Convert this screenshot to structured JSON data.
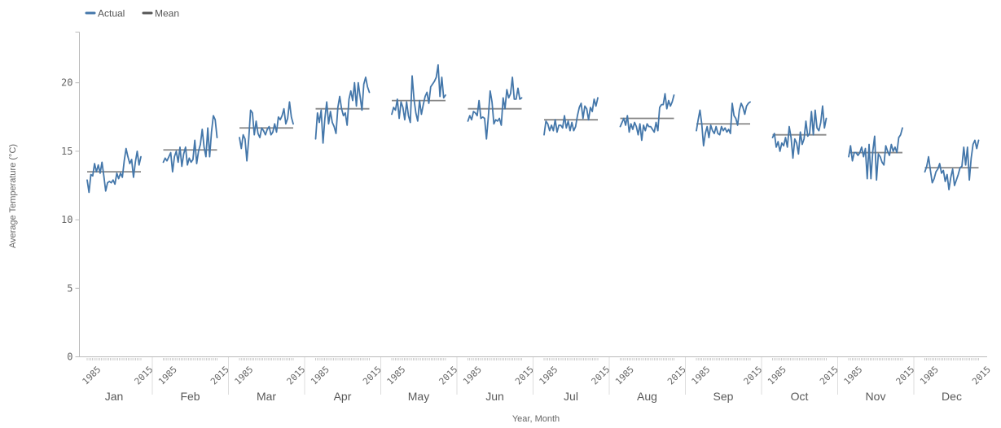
{
  "chart_data": {
    "type": "line",
    "title": "",
    "xlabel": "Year, Month",
    "ylabel": "Average Temperature (°C)",
    "ylim": [
      0,
      23.7
    ],
    "yticks": [
      0,
      5,
      10,
      15,
      20
    ],
    "grid": false,
    "legend_position": "top-left",
    "legend": [
      {
        "name": "Actual",
        "color": "#4477aa"
      },
      {
        "name": "Mean",
        "color": "#555555"
      }
    ],
    "year_start": 1985,
    "year_end": 2015,
    "year_tick_labels": [
      "1985",
      "2015"
    ],
    "categories": [
      "Jan",
      "Feb",
      "Mar",
      "Apr",
      "May",
      "Jun",
      "Jul",
      "Aug",
      "Sep",
      "Oct",
      "Nov",
      "Dec"
    ],
    "series": [
      {
        "name": "Actual",
        "color": "#4477aa",
        "by_month": [
          {
            "month": "Jan",
            "values": [
              12.9,
              12.0,
              13.3,
              13.2,
              14.1,
              13.5,
              14.0,
              13.4,
              14.2,
              13.2,
              12.1,
              12.7,
              12.8,
              12.7,
              12.9,
              12.6,
              13.4,
              13.0,
              13.4,
              13.1,
              14.3,
              15.2,
              14.6,
              14.1,
              14.4,
              13.1,
              14.2,
              15.0,
              14.0,
              14.6
            ]
          },
          {
            "month": "Feb",
            "values": [
              14.2,
              14.5,
              14.3,
              14.6,
              14.9,
              13.5,
              14.6,
              15.0,
              14.2,
              15.3,
              13.9,
              14.8,
              15.3,
              14.0,
              14.5,
              14.2,
              14.4,
              15.8,
              14.1,
              15.0,
              15.5,
              16.6,
              15.3,
              14.6,
              16.7,
              14.6,
              16.4,
              17.6,
              17.3,
              16.0
            ]
          },
          {
            "month": "Mar",
            "values": [
              16.0,
              15.2,
              16.2,
              15.9,
              14.3,
              15.9,
              18.0,
              17.8,
              16.2,
              17.2,
              16.3,
              16.0,
              16.7,
              16.5,
              16.2,
              16.6,
              16.8,
              16.2,
              16.4,
              17.0,
              16.4,
              17.5,
              17.3,
              17.6,
              18.1,
              17.0,
              17.4,
              18.6,
              17.5,
              17.0
            ]
          },
          {
            "month": "Apr",
            "values": [
              15.9,
              17.8,
              17.1,
              18.0,
              15.6,
              17.4,
              18.6,
              17.0,
              17.9,
              17.1,
              16.8,
              16.3,
              18.2,
              19.0,
              18.1,
              17.6,
              17.8,
              16.9,
              18.8,
              19.4,
              18.7,
              20.0,
              18.3,
              20.0,
              19.0,
              18.0,
              19.9,
              20.4,
              19.7,
              19.3
            ]
          },
          {
            "month": "May",
            "values": [
              17.7,
              18.2,
              18.0,
              18.8,
              17.4,
              18.6,
              18.2,
              17.3,
              18.6,
              17.6,
              17.1,
              20.5,
              18.8,
              17.8,
              17.2,
              18.7,
              17.7,
              18.4,
              19.0,
              19.3,
              18.5,
              19.7,
              19.9,
              20.1,
              20.4,
              21.3,
              19.0,
              20.4,
              18.9,
              19.1
            ]
          },
          {
            "month": "Jun",
            "values": [
              17.2,
              17.6,
              17.3,
              17.9,
              17.8,
              17.6,
              18.7,
              17.4,
              17.5,
              17.4,
              15.9,
              17.5,
              19.4,
              18.6,
              17.0,
              17.3,
              17.2,
              17.4,
              16.9,
              18.9,
              18.1,
              19.5,
              18.9,
              19.2,
              20.4,
              18.8,
              18.8,
              19.6,
              18.8,
              18.9
            ]
          },
          {
            "month": "Jul",
            "values": [
              16.2,
              17.2,
              17.0,
              16.5,
              16.9,
              16.5,
              17.3,
              16.4,
              16.9,
              16.9,
              16.7,
              17.6,
              16.7,
              17.2,
              16.5,
              17.1,
              16.5,
              16.8,
              17.6,
              18.2,
              18.5,
              17.4,
              18.3,
              18.1,
              17.3,
              18.2,
              17.9,
              18.8,
              18.3,
              18.9
            ]
          },
          {
            "month": "Aug",
            "values": [
              16.8,
              17.1,
              17.4,
              16.9,
              17.6,
              16.4,
              17.0,
              16.6,
              17.1,
              16.8,
              16.2,
              17.0,
              15.8,
              16.9,
              16.5,
              17.0,
              16.8,
              16.8,
              16.6,
              16.4,
              17.1,
              16.5,
              18.2,
              18.4,
              18.4,
              19.2,
              18.1,
              18.7,
              18.3,
              18.6,
              19.1
            ]
          },
          {
            "month": "Sep",
            "values": [
              16.5,
              17.3,
              18.0,
              17.0,
              15.4,
              16.3,
              16.8,
              16.0,
              16.9,
              16.5,
              16.3,
              16.8,
              16.3,
              16.2,
              16.8,
              16.5,
              16.7,
              16.4,
              16.6,
              16.3,
              18.5,
              17.6,
              17.4,
              16.9,
              18.0,
              18.5,
              18.2,
              17.7,
              18.3,
              18.5,
              18.6
            ]
          },
          {
            "month": "Oct",
            "values": [
              16.0,
              16.3,
              15.3,
              15.7,
              15.0,
              15.6,
              15.4,
              16.0,
              15.3,
              16.8,
              16.0,
              14.5,
              15.9,
              15.6,
              14.8,
              16.4,
              15.5,
              15.9,
              17.2,
              16.1,
              16.3,
              17.9,
              16.2,
              18.0,
              16.7,
              16.5,
              17.1,
              18.3,
              16.7,
              17.4
            ]
          },
          {
            "month": "Nov",
            "values": [
              14.6,
              15.4,
              14.3,
              14.9,
              14.9,
              14.7,
              14.9,
              15.3,
              14.6,
              15.2,
              13.0,
              15.5,
              13.0,
              15.0,
              16.1,
              12.9,
              14.8,
              14.6,
              14.2,
              14.0,
              15.4,
              15.0,
              14.7,
              15.5,
              15.0,
              15.3,
              14.9,
              16.0,
              16.2,
              16.7
            ]
          },
          {
            "month": "Dec",
            "values": [
              13.5,
              13.9,
              14.6,
              13.6,
              12.7,
              13.0,
              13.5,
              13.7,
              14.1,
              13.4,
              13.6,
              12.8,
              13.3,
              12.2,
              13.1,
              13.7,
              12.5,
              12.9,
              13.3,
              13.8,
              13.9,
              15.3,
              14.0,
              15.3,
              12.9,
              14.5,
              15.5,
              15.8,
              15.2,
              15.8
            ]
          }
        ]
      },
      {
        "name": "Mean",
        "color": "#888888",
        "by_month": [
          {
            "month": "Jan",
            "value": 13.5
          },
          {
            "month": "Feb",
            "value": 15.1
          },
          {
            "month": "Mar",
            "value": 16.7
          },
          {
            "month": "Apr",
            "value": 18.1
          },
          {
            "month": "May",
            "value": 18.7
          },
          {
            "month": "Jun",
            "value": 18.1
          },
          {
            "month": "Jul",
            "value": 17.3
          },
          {
            "month": "Aug",
            "value": 17.4
          },
          {
            "month": "Sep",
            "value": 17.0
          },
          {
            "month": "Oct",
            "value": 16.2
          },
          {
            "month": "Nov",
            "value": 14.9
          },
          {
            "month": "Dec",
            "value": 13.8
          }
        ]
      }
    ]
  }
}
